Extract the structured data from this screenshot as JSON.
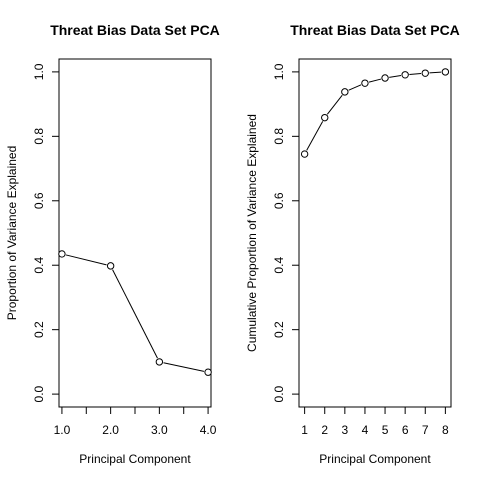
{
  "chart_data": [
    {
      "type": "line",
      "title": "Threat Bias Data Set PCA",
      "xlabel": "Principal Component",
      "ylabel": "Proportion of Variance Explained",
      "x": [
        1,
        2,
        3,
        4
      ],
      "values": [
        0.435,
        0.398,
        0.1,
        0.068
      ],
      "xlim": [
        0.94,
        4.06
      ],
      "ylim": [
        0,
        1
      ],
      "xticks": [
        1,
        1.5,
        2,
        2.5,
        3,
        3.5,
        4
      ],
      "xtick_labels": [
        "1.0",
        "",
        "2.0",
        "",
        "3.0",
        "",
        "4.0"
      ],
      "yticks": [
        0,
        0.2,
        0.4,
        0.6,
        0.8,
        1
      ],
      "ytick_labels": [
        "0.0",
        "0.2",
        "0.4",
        "0.6",
        "0.8",
        "1.0"
      ],
      "grid": false,
      "markers": "open-circle"
    },
    {
      "type": "line",
      "title": "Threat Bias Data Set PCA",
      "xlabel": "Principal Component",
      "ylabel": "Cumulative Proportion of Variance Explained",
      "x": [
        1,
        2,
        3,
        4,
        5,
        6,
        7,
        8
      ],
      "values": [
        0.745,
        0.858,
        0.938,
        0.965,
        0.981,
        0.991,
        0.996,
        1.0
      ],
      "xlim": [
        0.72,
        8.28
      ],
      "ylim": [
        0,
        1
      ],
      "xticks": [
        1,
        2,
        3,
        4,
        5,
        6,
        7,
        8
      ],
      "xtick_labels": [
        "1",
        "2",
        "3",
        "4",
        "5",
        "6",
        "7",
        "8"
      ],
      "yticks": [
        0,
        0.2,
        0.4,
        0.6,
        0.8,
        1
      ],
      "ytick_labels": [
        "0.0",
        "0.2",
        "0.4",
        "0.6",
        "0.8",
        "1.0"
      ],
      "grid": false,
      "markers": "open-circle"
    }
  ]
}
